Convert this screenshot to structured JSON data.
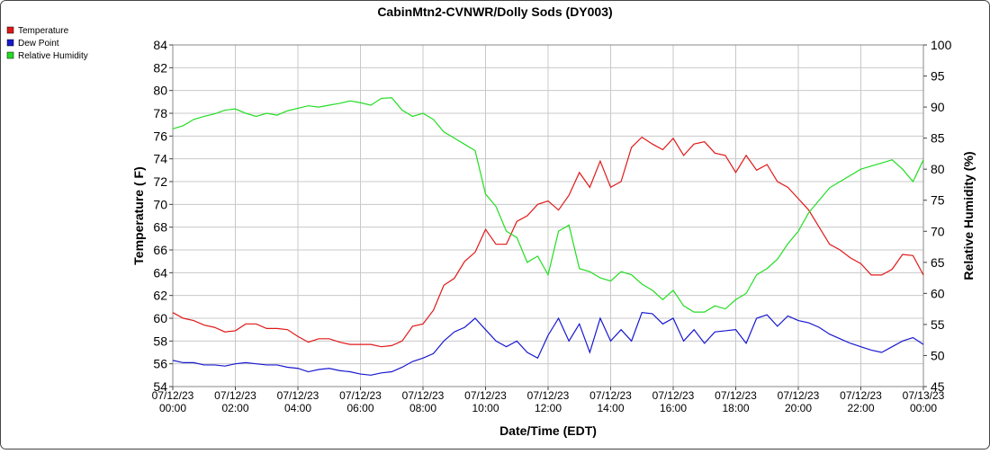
{
  "chart_data": {
    "type": "line",
    "title": "CabinMtn2-CVNWR/Dolly Sods (DY003)",
    "xlabel": "Date/Time (EDT)",
    "ylabel": "Temperature ( F)",
    "y2label": "Relative Humidity (%)",
    "x": [
      "07/12/23 00:00",
      "07/12/23 00:20",
      "07/12/23 00:40",
      "07/12/23 01:00",
      "07/12/23 01:20",
      "07/12/23 01:40",
      "07/12/23 02:00",
      "07/12/23 02:20",
      "07/12/23 02:40",
      "07/12/23 03:00",
      "07/12/23 03:20",
      "07/12/23 03:40",
      "07/12/23 04:00",
      "07/12/23 04:20",
      "07/12/23 04:40",
      "07/12/23 05:00",
      "07/12/23 05:20",
      "07/12/23 05:40",
      "07/12/23 06:00",
      "07/12/23 06:20",
      "07/12/23 06:40",
      "07/12/23 07:00",
      "07/12/23 07:20",
      "07/12/23 07:40",
      "07/12/23 08:00",
      "07/12/23 08:20",
      "07/12/23 08:40",
      "07/12/23 09:00",
      "07/12/23 09:20",
      "07/12/23 09:40",
      "07/12/23 10:00",
      "07/12/23 10:20",
      "07/12/23 10:40",
      "07/12/23 11:00",
      "07/12/23 11:20",
      "07/12/23 11:40",
      "07/12/23 12:00",
      "07/12/23 12:20",
      "07/12/23 12:40",
      "07/12/23 13:00",
      "07/12/23 13:20",
      "07/12/23 13:40",
      "07/12/23 14:00",
      "07/12/23 14:20",
      "07/12/23 14:40",
      "07/12/23 15:00",
      "07/12/23 15:20",
      "07/12/23 15:40",
      "07/12/23 16:00",
      "07/12/23 16:20",
      "07/12/23 16:40",
      "07/12/23 17:00",
      "07/12/23 17:20",
      "07/12/23 17:40",
      "07/12/23 18:00",
      "07/12/23 18:20",
      "07/12/23 18:40",
      "07/12/23 19:00",
      "07/12/23 19:20",
      "07/12/23 19:40",
      "07/12/23 20:00",
      "07/12/23 20:20",
      "07/12/23 20:40",
      "07/12/23 21:00",
      "07/12/23 21:20",
      "07/12/23 21:40",
      "07/12/23 22:00",
      "07/12/23 22:20",
      "07/12/23 22:40",
      "07/12/23 23:00",
      "07/12/23 23:20",
      "07/12/23 23:40",
      "07/13/23 00:00"
    ],
    "xlim": [
      "07/12/23 00:00",
      "07/13/23 00:00"
    ],
    "xticks": [
      "07/12/23 00:00",
      "07/12/23 02:00",
      "07/12/23 04:00",
      "07/12/23 06:00",
      "07/12/23 08:00",
      "07/12/23 10:00",
      "07/12/23 12:00",
      "07/12/23 14:00",
      "07/12/23 16:00",
      "07/12/23 18:00",
      "07/12/23 20:00",
      "07/12/23 22:00",
      "07/13/23 00:00"
    ],
    "ylim": [
      54,
      84
    ],
    "yticks": [
      54,
      56,
      58,
      60,
      62,
      64,
      66,
      68,
      70,
      72,
      74,
      76,
      78,
      80,
      82,
      84
    ],
    "y2lim": [
      45,
      100
    ],
    "y2ticks": [
      45,
      50,
      55,
      60,
      65,
      70,
      75,
      80,
      85,
      90,
      95,
      100
    ],
    "grid": true,
    "legend": "top-left",
    "series": [
      {
        "name": "Temperature",
        "color": "#e01818",
        "values": [
          60.5,
          60.0,
          59.8,
          59.4,
          59.2,
          58.8,
          58.9,
          59.5,
          59.5,
          59.1,
          59.1,
          59.0,
          58.4,
          57.9,
          58.2,
          58.2,
          57.9,
          57.7,
          57.7,
          57.7,
          57.5,
          57.6,
          58.0,
          59.3,
          59.5,
          60.7,
          62.9,
          63.5,
          65.0,
          65.8,
          67.8,
          66.5,
          66.5,
          68.5,
          69.0,
          70.0,
          70.3,
          69.5,
          70.8,
          72.8,
          71.5,
          73.8,
          71.5,
          72.0,
          75.0,
          75.9,
          75.3,
          74.8,
          75.8,
          74.3,
          75.3,
          75.5,
          74.5,
          74.3,
          72.8,
          74.3,
          73.0,
          73.5,
          72.0,
          71.5,
          70.5,
          69.5,
          68.0,
          66.5,
          66.0,
          65.3,
          64.8,
          63.8,
          63.8,
          64.3,
          65.6,
          65.5,
          63.8
        ]
      },
      {
        "name": "Dew Point",
        "color": "#1818d0",
        "values": [
          56.3,
          56.1,
          56.1,
          55.9,
          55.9,
          55.8,
          56.0,
          56.1,
          56.0,
          55.9,
          55.9,
          55.7,
          55.6,
          55.3,
          55.5,
          55.6,
          55.4,
          55.3,
          55.1,
          55.0,
          55.2,
          55.3,
          55.7,
          56.2,
          56.5,
          56.9,
          58.0,
          58.8,
          59.2,
          60.0,
          59.0,
          58.0,
          57.5,
          58.0,
          57.0,
          56.5,
          58.5,
          60.0,
          58.0,
          59.5,
          57.0,
          60.0,
          58.0,
          59.0,
          58.0,
          60.5,
          60.4,
          59.5,
          60.0,
          58.0,
          59.0,
          57.8,
          58.8,
          58.9,
          59.0,
          57.8,
          60.0,
          60.3,
          59.3,
          60.2,
          59.8,
          59.6,
          59.2,
          58.6,
          58.2,
          57.8,
          57.5,
          57.2,
          57.0,
          57.5,
          58.0,
          58.3,
          57.7
        ]
      },
      {
        "name": "Relative Humidity",
        "color": "#22dd22",
        "axis": "y2",
        "values": [
          86.5,
          87,
          88,
          88.5,
          88.9,
          89.5,
          89.7,
          89,
          88.5,
          89,
          88.7,
          89.4,
          89.8,
          90.2,
          90,
          90.3,
          90.6,
          91,
          90.7,
          90.3,
          91.4,
          91.5,
          89.5,
          88.5,
          89,
          88,
          86,
          85,
          84,
          83,
          76,
          74,
          70,
          69,
          65,
          66,
          63,
          70,
          71,
          64,
          63.5,
          62.5,
          62,
          63.5,
          63,
          61.5,
          60.5,
          59,
          60.5,
          58,
          57,
          57,
          58,
          57.5,
          59,
          60,
          63,
          64,
          65.5,
          68,
          70,
          73,
          75,
          77,
          78,
          79,
          80,
          80.5,
          81,
          81.5,
          80,
          78,
          81.5
        ]
      }
    ]
  }
}
